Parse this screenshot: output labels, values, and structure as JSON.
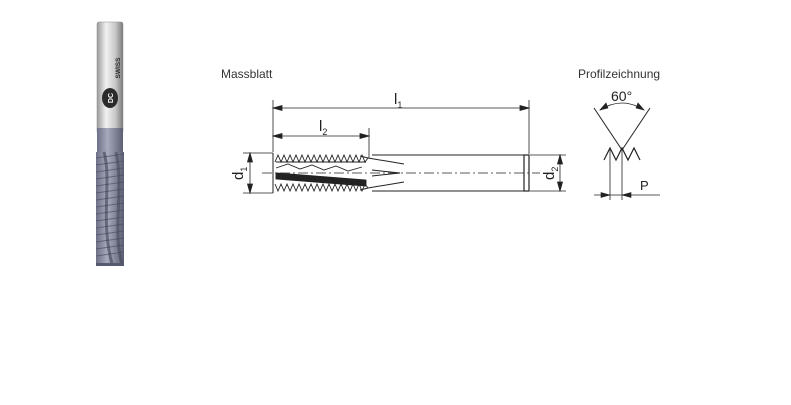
{
  "brand": {
    "logo_text": "DC",
    "logo_subtext": "SWISS"
  },
  "labels": {
    "massblatt": "Massblatt",
    "profilzeichnung": "Profilzeichnung"
  },
  "dimensions": {
    "l1": {
      "main": "l",
      "sub": "1"
    },
    "l2": {
      "main": "l",
      "sub": "2"
    },
    "d1": {
      "main": "d",
      "sub": "1"
    },
    "d2": {
      "main": "d",
      "sub": "2"
    },
    "angle": "60°",
    "pitch": "P"
  },
  "colors": {
    "line": "#222222",
    "shank_light": "#e6e6e6",
    "shank_dark": "#8a8a8a",
    "coating": "#7b7f94"
  }
}
